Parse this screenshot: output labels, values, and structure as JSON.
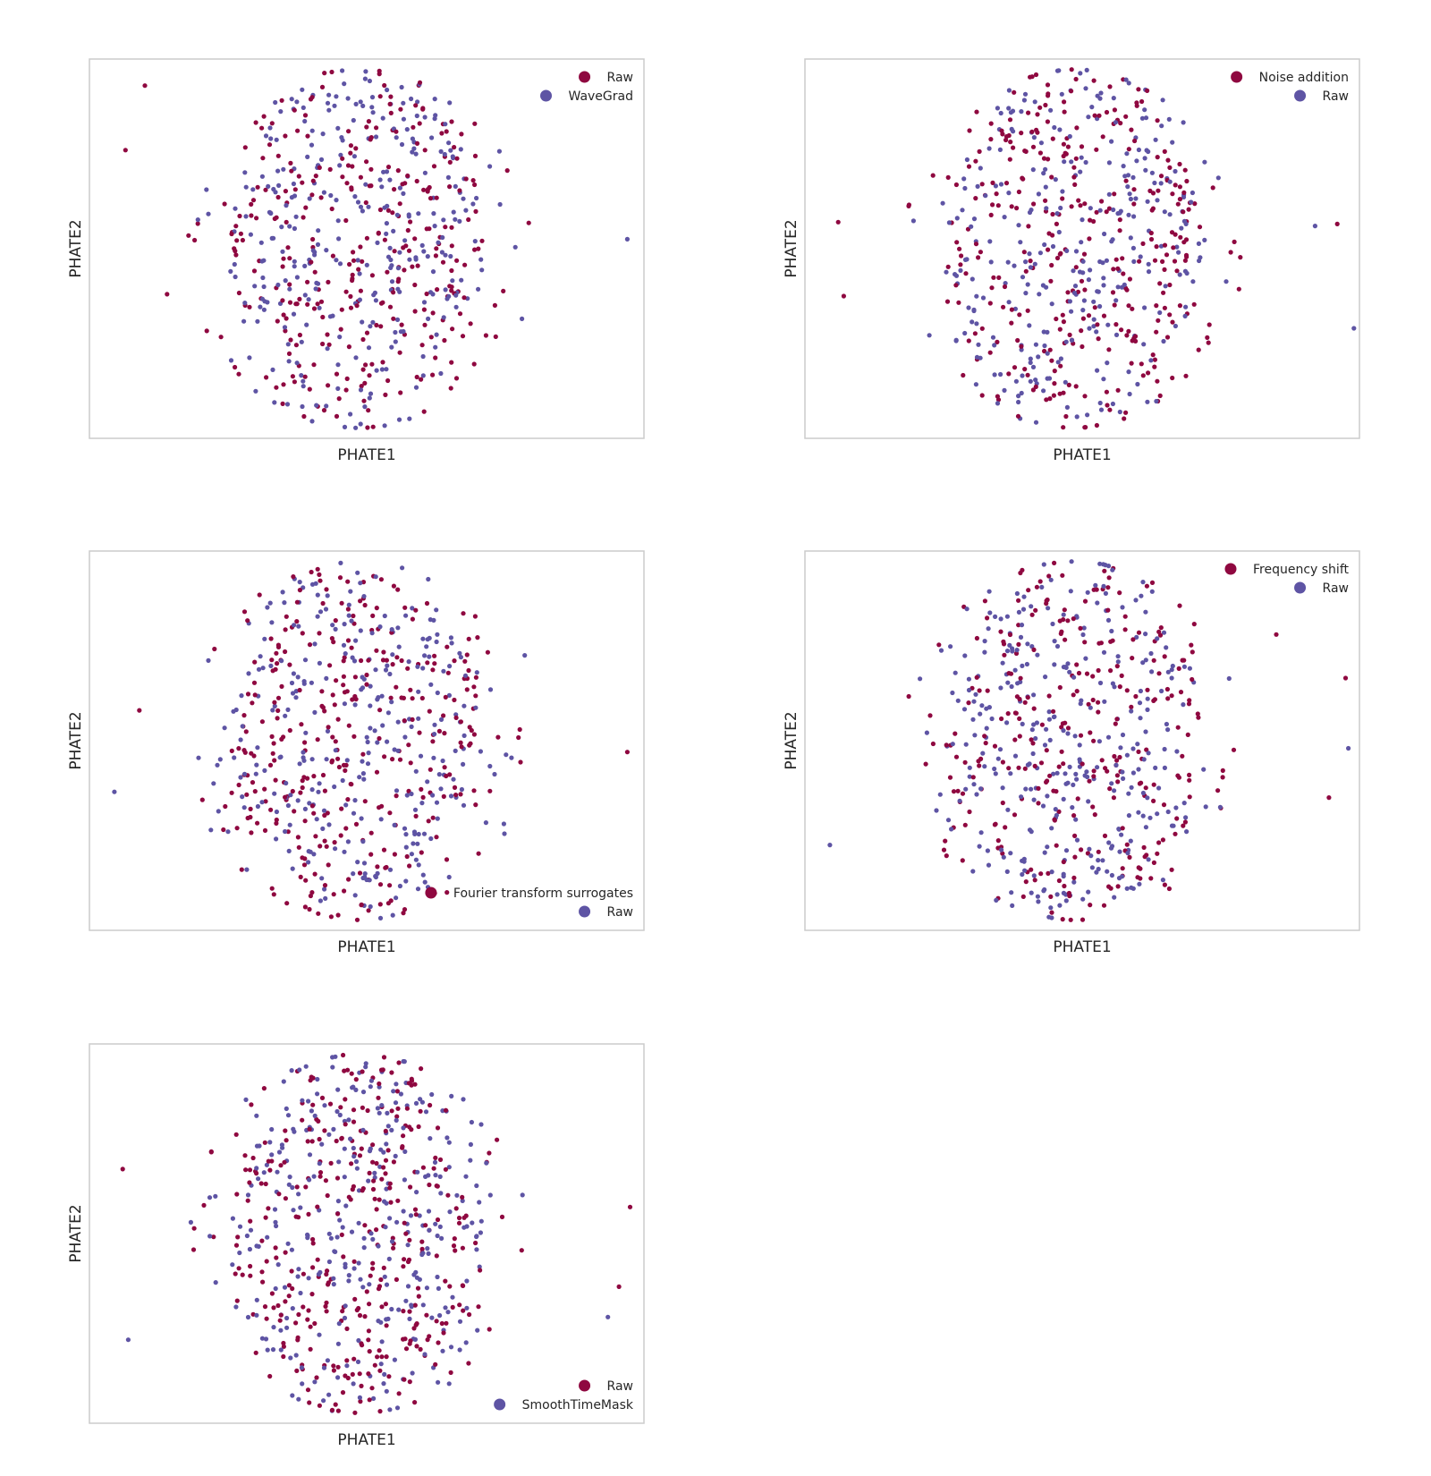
{
  "colors": {
    "series_a": "#8f0840",
    "series_b": "#5e54a4"
  },
  "chart_data": [
    {
      "type": "scatter",
      "xlabel": "PHATE1",
      "ylabel": "PHATE2",
      "legend_position": "top-right",
      "series": [
        {
          "name": "Raw",
          "color": "#8f0840"
        },
        {
          "name": "WaveGrad",
          "color": "#5e54a4"
        }
      ],
      "outliers": [
        [
          -0.87,
          0.52
        ],
        [
          0.94,
          0.05
        ],
        [
          -0.72,
          -0.24
        ],
        [
          0.56,
          -0.37
        ],
        [
          -0.8,
          0.86
        ]
      ],
      "point_count": 560,
      "seed": 11
    },
    {
      "type": "scatter",
      "xlabel": "PHATE1",
      "ylabel": "PHATE2",
      "legend_position": "top-right",
      "series": [
        {
          "name": "Noise addition",
          "color": "#8f0840"
        },
        {
          "name": "Raw",
          "color": "#5e54a4"
        }
      ],
      "outliers": [
        [
          -0.88,
          0.14
        ],
        [
          0.84,
          0.12
        ],
        [
          0.92,
          0.13
        ],
        [
          0.98,
          -0.42
        ],
        [
          -0.86,
          -0.25
        ]
      ],
      "point_count": 560,
      "seed": 23
    },
    {
      "type": "scatter",
      "xlabel": "PHATE1",
      "ylabel": "PHATE2",
      "legend_position": "bottom-right",
      "series": [
        {
          "name": "Fourier transform surrogates",
          "color": "#8f0840"
        },
        {
          "name": "Raw",
          "color": "#5e54a4"
        }
      ],
      "outliers": [
        [
          0.94,
          -0.06
        ],
        [
          0.57,
          0.45
        ],
        [
          0.34,
          0.1
        ],
        [
          -0.91,
          -0.27
        ],
        [
          -0.82,
          0.16
        ]
      ],
      "point_count": 560,
      "seed": 37
    },
    {
      "type": "scatter",
      "xlabel": "PHATE1",
      "ylabel": "PHATE2",
      "legend_position": "top-right",
      "series": [
        {
          "name": "Frequency shift",
          "color": "#8f0840"
        },
        {
          "name": "Raw",
          "color": "#5e54a4"
        }
      ],
      "outliers": [
        [
          0.95,
          0.33
        ],
        [
          0.96,
          -0.04
        ],
        [
          0.89,
          -0.3
        ],
        [
          -0.91,
          -0.55
        ],
        [
          0.7,
          0.56
        ]
      ],
      "point_count": 560,
      "seed": 51
    },
    {
      "type": "scatter",
      "xlabel": "PHATE1",
      "ylabel": "PHATE2",
      "legend_position": "bottom-right",
      "series": [
        {
          "name": "Raw",
          "color": "#8f0840"
        },
        {
          "name": "SmoothTimeMask",
          "color": "#5e54a4"
        }
      ],
      "outliers": [
        [
          -0.88,
          0.34
        ],
        [
          -0.86,
          -0.56
        ],
        [
          0.95,
          0.14
        ],
        [
          0.87,
          -0.44
        ],
        [
          0.91,
          -0.28
        ]
      ],
      "point_count": 620,
      "seed": 67
    }
  ]
}
